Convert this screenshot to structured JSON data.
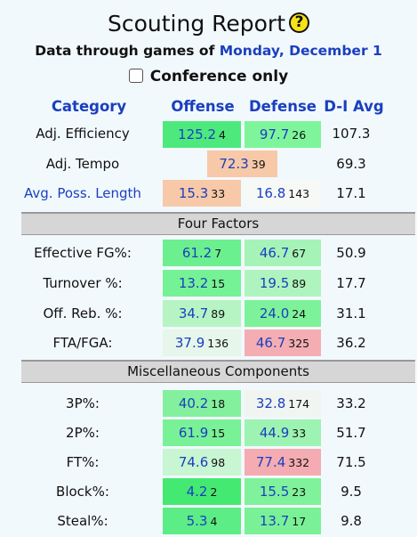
{
  "header": {
    "title": "Scouting Report",
    "help_symbol": "?",
    "subtitle_prefix": "Data through games of",
    "date": "Monday, December 1",
    "conference_only_label": "Conference only"
  },
  "columns": {
    "category": "Category",
    "offense": "Offense",
    "defense": "Defense",
    "avg": "D-I Avg"
  },
  "rows": [
    {
      "label": "Adj. Efficiency",
      "off": "125.2",
      "off_rank": "4",
      "def": "97.7",
      "def_rank": "26",
      "avg": "107.3"
    },
    {
      "label": "Adj. Tempo",
      "tempo": "72.3",
      "tempo_rank": "39",
      "avg": "69.3"
    },
    {
      "label": "Avg. Poss. Length",
      "off": "15.3",
      "off_rank": "33",
      "def": "16.8",
      "def_rank": "143",
      "avg": "17.1"
    }
  ],
  "four_factors": {
    "title": "Four Factors",
    "rows": [
      {
        "label": "Effective FG%:",
        "off": "61.2",
        "off_rank": "7",
        "def": "46.7",
        "def_rank": "67",
        "avg": "50.9"
      },
      {
        "label": "Turnover %:",
        "off": "13.2",
        "off_rank": "15",
        "def": "19.5",
        "def_rank": "89",
        "avg": "17.7"
      },
      {
        "label": "Off. Reb. %:",
        "off": "34.7",
        "off_rank": "89",
        "def": "24.0",
        "def_rank": "24",
        "avg": "31.1"
      },
      {
        "label": "FTA/FGA:",
        "off": "37.9",
        "off_rank": "136",
        "def": "46.7",
        "def_rank": "325",
        "avg": "36.2"
      }
    ]
  },
  "misc": {
    "title": "Miscellaneous Components",
    "rows": [
      {
        "label": "3P%:",
        "off": "40.2",
        "off_rank": "18",
        "def": "32.8",
        "def_rank": "174",
        "avg": "33.2"
      },
      {
        "label": "2P%:",
        "off": "61.9",
        "off_rank": "15",
        "def": "44.9",
        "def_rank": "33",
        "avg": "51.7"
      },
      {
        "label": "FT%:",
        "off": "74.6",
        "off_rank": "98",
        "def": "77.4",
        "def_rank": "332",
        "avg": "71.5"
      },
      {
        "label": "Block%:",
        "off": "4.2",
        "off_rank": "2",
        "def": "15.5",
        "def_rank": "23",
        "avg": "9.5"
      },
      {
        "label": "Steal%:",
        "off": "5.3",
        "off_rank": "4",
        "def": "13.7",
        "def_rank": "17",
        "avg": "9.8"
      }
    ]
  },
  "colors": {
    "link": "#1a3fbf",
    "section_bg": "#d6d6d6",
    "page_bg": "#f2f9fd"
  }
}
